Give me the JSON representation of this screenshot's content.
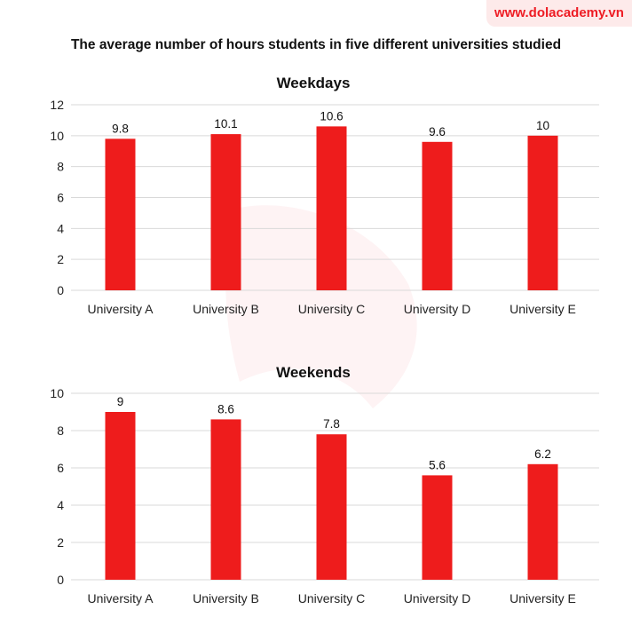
{
  "watermark": "www.dolacademy.vn",
  "colors": {
    "bar": "#ee1c1c",
    "grid": "#d9d9d9",
    "watermark": "#ee1c24"
  },
  "chart_data": {
    "title": "The average number of hours students in five different universities studied",
    "charts": [
      {
        "type": "bar",
        "title": "Weekdays",
        "categories": [
          "University A",
          "University B",
          "University C",
          "University D",
          "University E"
        ],
        "values": [
          9.8,
          10.1,
          10.6,
          9.6,
          10
        ],
        "ylim": [
          0,
          12
        ],
        "yticks": [
          0,
          2,
          4,
          6,
          8,
          10,
          12
        ],
        "grid": true,
        "data_labels": true
      },
      {
        "type": "bar",
        "title": "Weekends",
        "categories": [
          "University A",
          "University B",
          "University C",
          "University D",
          "University E"
        ],
        "values": [
          9,
          8.6,
          7.8,
          5.6,
          6.2
        ],
        "ylim": [
          0,
          10
        ],
        "yticks": [
          0,
          2,
          4,
          6,
          8,
          10
        ],
        "grid": true,
        "data_labels": true
      }
    ]
  }
}
